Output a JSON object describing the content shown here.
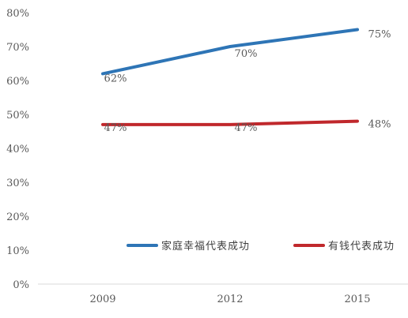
{
  "chart_data": {
    "type": "line",
    "title": "",
    "xlabel": "",
    "ylabel": "",
    "categories": [
      "2009",
      "2012",
      "2015"
    ],
    "ylim": [
      0,
      80
    ],
    "y_tick_labels": [
      "0%",
      "10%",
      "20%",
      "30%",
      "40%",
      "50%",
      "60%",
      "70%",
      "80%"
    ],
    "grid": false,
    "legend_position": "bottom-inside",
    "series": [
      {
        "name": "家庭幸福代表成功",
        "color": "#2E75B6",
        "values": [
          62,
          70,
          75
        ],
        "data_labels": [
          "62%",
          "70%",
          "75%"
        ]
      },
      {
        "name": "有钱代表成功",
        "color": "#C0282C",
        "values": [
          47,
          47,
          48
        ],
        "data_labels": [
          "47%",
          "47%",
          "48%"
        ]
      }
    ]
  }
}
